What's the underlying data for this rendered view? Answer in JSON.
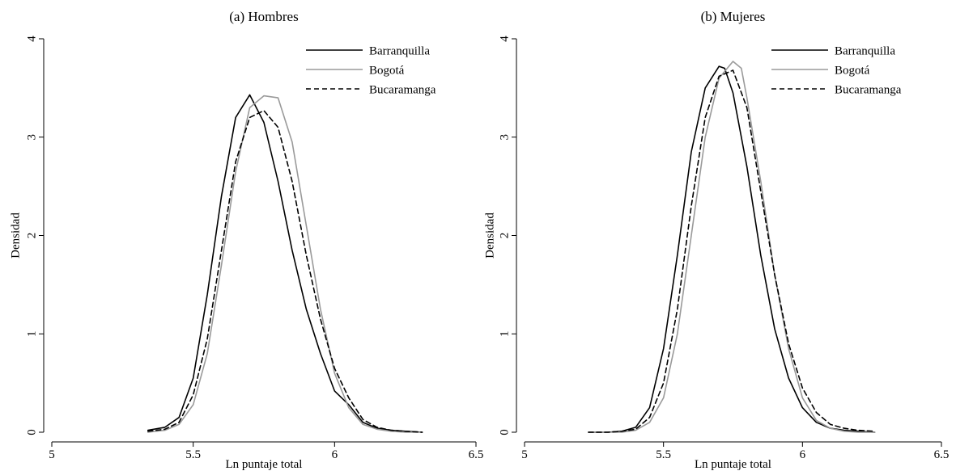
{
  "chart_data": [
    {
      "type": "line",
      "title": "(a) Hombres",
      "xlabel": "Ln puntaje total",
      "ylabel": "Densidad",
      "xlim": [
        5,
        6.5
      ],
      "ylim": [
        0,
        4
      ],
      "xticks": [
        "5",
        "5.5",
        "6",
        "6.5"
      ],
      "yticks": [
        "0",
        "1",
        "2",
        "3",
        "4"
      ],
      "legend_position": "top-right",
      "series": [
        {
          "name": "Barranquilla",
          "color": "#000000",
          "dash": "solid",
          "x": [
            5.34,
            5.4,
            5.45,
            5.5,
            5.55,
            5.6,
            5.65,
            5.7,
            5.75,
            5.8,
            5.85,
            5.9,
            5.95,
            6.0,
            6.05,
            6.1,
            6.15,
            6.2,
            6.25,
            6.31
          ],
          "y": [
            0.02,
            0.05,
            0.15,
            0.55,
            1.4,
            2.4,
            3.2,
            3.43,
            3.15,
            2.55,
            1.85,
            1.25,
            0.8,
            0.42,
            0.28,
            0.1,
            0.04,
            0.02,
            0.01,
            0.0
          ]
        },
        {
          "name": "Bogotá",
          "color": "#9a9a9a",
          "dash": "solid",
          "x": [
            5.34,
            5.4,
            5.45,
            5.5,
            5.55,
            5.6,
            5.65,
            5.7,
            5.75,
            5.8,
            5.85,
            5.9,
            5.95,
            6.0,
            6.05,
            6.1,
            6.15,
            6.2,
            6.25,
            6.31
          ],
          "y": [
            0.0,
            0.02,
            0.08,
            0.28,
            0.8,
            1.7,
            2.65,
            3.3,
            3.42,
            3.4,
            2.95,
            2.1,
            1.25,
            0.6,
            0.25,
            0.08,
            0.03,
            0.01,
            0.0,
            0.0
          ]
        },
        {
          "name": "Bucaramanga",
          "color": "#000000",
          "dash": "dashed",
          "x": [
            5.34,
            5.4,
            5.45,
            5.5,
            5.55,
            5.6,
            5.65,
            5.7,
            5.75,
            5.8,
            5.85,
            5.9,
            5.95,
            6.0,
            6.05,
            6.1,
            6.15,
            6.2,
            6.25,
            6.31
          ],
          "y": [
            0.01,
            0.03,
            0.1,
            0.38,
            0.95,
            1.85,
            2.75,
            3.2,
            3.27,
            3.1,
            2.55,
            1.8,
            1.15,
            0.65,
            0.35,
            0.13,
            0.05,
            0.02,
            0.01,
            0.0
          ]
        }
      ]
    },
    {
      "type": "line",
      "title": "(b) Mujeres",
      "xlabel": "Ln puntaje total",
      "ylabel": "Densidad",
      "xlim": [
        5,
        6.5
      ],
      "ylim": [
        0,
        4
      ],
      "xticks": [
        "5",
        "5.5",
        "6",
        "6.5"
      ],
      "yticks": [
        "0",
        "1",
        "2",
        "3",
        "4"
      ],
      "legend_position": "top-right",
      "series": [
        {
          "name": "Barranquilla",
          "color": "#000000",
          "dash": "solid",
          "x": [
            5.23,
            5.3,
            5.35,
            5.4,
            5.45,
            5.5,
            5.55,
            5.6,
            5.65,
            5.7,
            5.72,
            5.75,
            5.8,
            5.85,
            5.9,
            5.95,
            6.0,
            6.05,
            6.1,
            6.15,
            6.2,
            6.26
          ],
          "y": [
            0.0,
            0.0,
            0.01,
            0.05,
            0.25,
            0.85,
            1.8,
            2.85,
            3.5,
            3.72,
            3.7,
            3.45,
            2.7,
            1.8,
            1.05,
            0.55,
            0.25,
            0.1,
            0.04,
            0.02,
            0.01,
            0.0
          ]
        },
        {
          "name": "Bogotá",
          "color": "#9a9a9a",
          "dash": "solid",
          "x": [
            5.23,
            5.3,
            5.35,
            5.4,
            5.45,
            5.5,
            5.55,
            5.6,
            5.65,
            5.7,
            5.75,
            5.78,
            5.8,
            5.85,
            5.9,
            5.95,
            6.0,
            6.05,
            6.1,
            6.15,
            6.2,
            6.26
          ],
          "y": [
            0.0,
            0.0,
            0.0,
            0.02,
            0.1,
            0.35,
            1.0,
            2.0,
            3.0,
            3.6,
            3.77,
            3.7,
            3.4,
            2.55,
            1.6,
            0.85,
            0.35,
            0.12,
            0.04,
            0.01,
            0.0,
            0.0
          ]
        },
        {
          "name": "Bucaramanga",
          "color": "#000000",
          "dash": "dashed",
          "x": [
            5.23,
            5.3,
            5.35,
            5.4,
            5.45,
            5.5,
            5.55,
            5.6,
            5.65,
            5.7,
            5.75,
            5.8,
            5.85,
            5.9,
            5.95,
            6.0,
            6.05,
            6.1,
            6.15,
            6.2,
            6.26
          ],
          "y": [
            0.0,
            0.0,
            0.01,
            0.03,
            0.15,
            0.5,
            1.25,
            2.3,
            3.2,
            3.62,
            3.68,
            3.3,
            2.45,
            1.6,
            0.9,
            0.45,
            0.2,
            0.08,
            0.04,
            0.02,
            0.01
          ]
        }
      ]
    }
  ]
}
